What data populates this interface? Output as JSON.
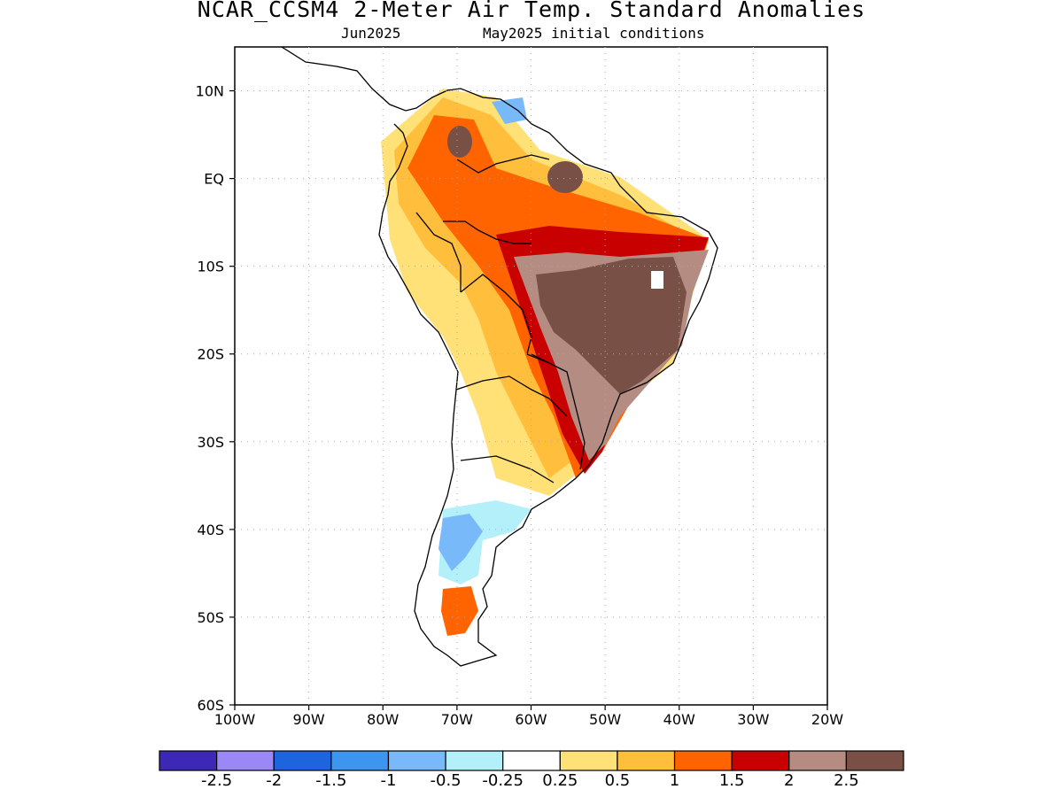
{
  "header": {
    "title": "NCAR_CCSM4 2-Meter Air Temp. Standard Anomalies",
    "target_month": "Jun2025",
    "initial_conditions": "May2025 initial conditions"
  },
  "map": {
    "region": "South America",
    "lon_range": [
      -100,
      -20
    ],
    "lat_range": [
      -60,
      15
    ],
    "lat_ticks": [
      {
        "lat": 10,
        "label": "10N"
      },
      {
        "lat": 0,
        "label": "EQ"
      },
      {
        "lat": -10,
        "label": "10S"
      },
      {
        "lat": -20,
        "label": "20S"
      },
      {
        "lat": -30,
        "label": "30S"
      },
      {
        "lat": -40,
        "label": "40S"
      },
      {
        "lat": -50,
        "label": "50S"
      },
      {
        "lat": -60,
        "label": "60S"
      }
    ],
    "lon_ticks": [
      {
        "lon": -100,
        "label": "100W"
      },
      {
        "lon": -90,
        "label": "90W"
      },
      {
        "lon": -80,
        "label": "80W"
      },
      {
        "lon": -70,
        "label": "70W"
      },
      {
        "lon": -60,
        "label": "60W"
      },
      {
        "lon": -50,
        "label": "50W"
      },
      {
        "lon": -40,
        "label": "40W"
      },
      {
        "lon": -30,
        "label": "30W"
      },
      {
        "lon": -20,
        "label": "20W"
      }
    ],
    "grid": "dotted"
  },
  "colorbar": {
    "colors": [
      "#3c28b4",
      "#9b87f5",
      "#1e64dc",
      "#3c96f0",
      "#78b9fa",
      "#b4f0fa",
      "#ffffff",
      "#ffe178",
      "#ffbe3c",
      "#ff6400",
      "#c80000",
      "#b48c82",
      "#785046"
    ],
    "labels": [
      "-2.5",
      "-2",
      "-1.5",
      "-1",
      "-0.5",
      "-0.25",
      "0.25",
      "0.5",
      "1",
      "1.5",
      "2",
      "2.5"
    ]
  }
}
